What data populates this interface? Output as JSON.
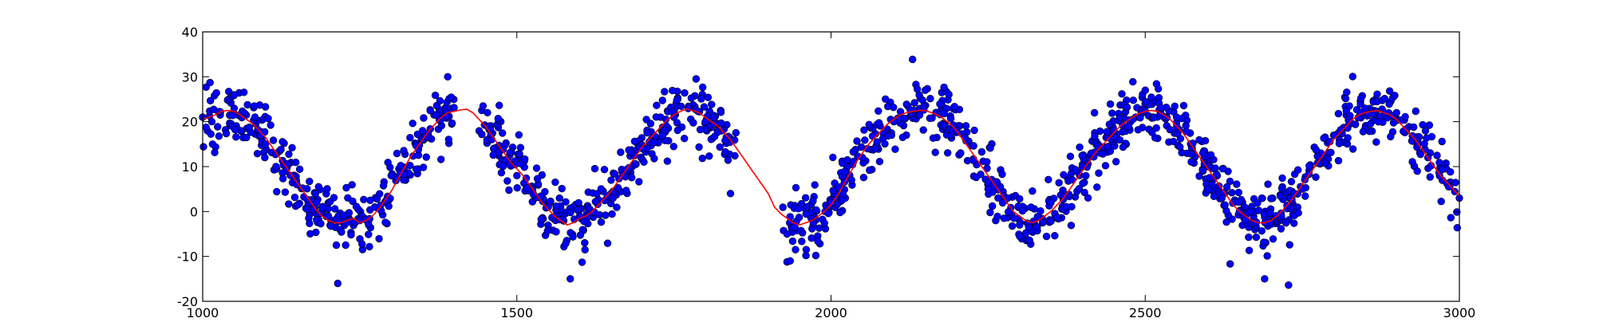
{
  "chart_data": {
    "type": "scatter",
    "title": "",
    "xlabel": "",
    "ylabel": "",
    "xlim": [
      1000,
      3000
    ],
    "ylim": [
      -20,
      40
    ],
    "x_ticks": [
      1000,
      1500,
      2000,
      2500,
      3000
    ],
    "y_ticks": [
      -20,
      -10,
      0,
      10,
      20,
      30,
      40
    ],
    "x_tick_labels": [
      "1000",
      "1500",
      "2000",
      "2500",
      "3000"
    ],
    "y_tick_labels": [
      "-20",
      "-10",
      "0",
      "10",
      "20",
      "30",
      "40"
    ],
    "grid": false,
    "legend": "none",
    "colors": {
      "points": "#0000ff",
      "point_edge": "#000000",
      "fit_line": "#ff0000",
      "axes": "#000000",
      "background": "#ffffff"
    },
    "gaps": [
      [
        1400,
        1440
      ],
      [
        1850,
        1920
      ]
    ],
    "series": [
      {
        "kind": "scatter",
        "point_count": 1600,
        "x_range": [
          1000,
          3000
        ],
        "pattern": "sinusoid, period ~370, amplitude ~12.5 around ~10, noise sd ~3",
        "samples": [
          {
            "x": 1000,
            "y": 21
          },
          {
            "x": 1050,
            "y": 23
          },
          {
            "x": 1100,
            "y": 15
          },
          {
            "x": 1150,
            "y": 6
          },
          {
            "x": 1200,
            "y": -1
          },
          {
            "x": 1215,
            "y": -16
          },
          {
            "x": 1250,
            "y": -2
          },
          {
            "x": 1300,
            "y": 8
          },
          {
            "x": 1350,
            "y": 18
          },
          {
            "x": 1390,
            "y": 30
          },
          {
            "x": 1460,
            "y": 16
          },
          {
            "x": 1500,
            "y": 8
          },
          {
            "x": 1550,
            "y": 1
          },
          {
            "x": 1585,
            "y": -15
          },
          {
            "x": 1600,
            "y": -1
          },
          {
            "x": 1650,
            "y": 7
          },
          {
            "x": 1700,
            "y": 14
          },
          {
            "x": 1750,
            "y": 21
          },
          {
            "x": 1800,
            "y": 20
          },
          {
            "x": 1840,
            "y": 4
          },
          {
            "x": 1930,
            "y": -5
          },
          {
            "x": 1935,
            "y": -11
          },
          {
            "x": 2000,
            "y": 2
          },
          {
            "x": 2050,
            "y": 12
          },
          {
            "x": 2100,
            "y": 20
          },
          {
            "x": 2150,
            "y": 27
          },
          {
            "x": 2200,
            "y": 18
          },
          {
            "x": 2250,
            "y": 5
          },
          {
            "x": 2300,
            "y": -3
          },
          {
            "x": 2350,
            "y": 2
          },
          {
            "x": 2400,
            "y": 10
          },
          {
            "x": 2450,
            "y": 18
          },
          {
            "x": 2500,
            "y": 27
          },
          {
            "x": 2550,
            "y": 21
          },
          {
            "x": 2600,
            "y": 10
          },
          {
            "x": 2650,
            "y": 0
          },
          {
            "x": 2690,
            "y": -15
          },
          {
            "x": 2750,
            "y": 5
          },
          {
            "x": 2800,
            "y": 17
          },
          {
            "x": 2850,
            "y": 23
          },
          {
            "x": 2900,
            "y": 22
          },
          {
            "x": 2950,
            "y": 12
          },
          {
            "x": 3000,
            "y": 3
          }
        ]
      },
      {
        "kind": "line",
        "points": [
          {
            "x": 1000,
            "y": 20.5
          },
          {
            "x": 1010,
            "y": 21
          },
          {
            "x": 1020,
            "y": 21.5
          },
          {
            "x": 1030,
            "y": 22.3
          },
          {
            "x": 1040,
            "y": 22.5
          },
          {
            "x": 1050,
            "y": 22.3
          },
          {
            "x": 1060,
            "y": 21.5
          },
          {
            "x": 1070,
            "y": 20.5
          },
          {
            "x": 1080,
            "y": 19.5
          },
          {
            "x": 1090,
            "y": 18
          },
          {
            "x": 1100,
            "y": 16.5
          },
          {
            "x": 1110,
            "y": 14.5
          },
          {
            "x": 1120,
            "y": 12.5
          },
          {
            "x": 1130,
            "y": 10.5
          },
          {
            "x": 1140,
            "y": 8.5
          },
          {
            "x": 1150,
            "y": 6.5
          },
          {
            "x": 1160,
            "y": 4.5
          },
          {
            "x": 1170,
            "y": 2.5
          },
          {
            "x": 1180,
            "y": 0.5
          },
          {
            "x": 1190,
            "y": -1
          },
          {
            "x": 1200,
            "y": -2
          },
          {
            "x": 1210,
            "y": -2.5
          },
          {
            "x": 1220,
            "y": -2.5
          },
          {
            "x": 1230,
            "y": -2
          },
          {
            "x": 1240,
            "y": -1.5
          },
          {
            "x": 1250,
            "y": -2.5
          },
          {
            "x": 1260,
            "y": -2
          },
          {
            "x": 1270,
            "y": -1
          },
          {
            "x": 1280,
            "y": 0.5
          },
          {
            "x": 1290,
            "y": 2.5
          },
          {
            "x": 1300,
            "y": 4.5
          },
          {
            "x": 1310,
            "y": 7
          },
          {
            "x": 1320,
            "y": 9.5
          },
          {
            "x": 1330,
            "y": 12
          },
          {
            "x": 1340,
            "y": 14
          },
          {
            "x": 1350,
            "y": 16
          },
          {
            "x": 1360,
            "y": 18
          },
          {
            "x": 1370,
            "y": 19.5
          },
          {
            "x": 1380,
            "y": 21
          },
          {
            "x": 1390,
            "y": 22
          },
          {
            "x": 1400,
            "y": 22.3
          },
          {
            "x": 1410,
            "y": 22.6
          },
          {
            "x": 1420,
            "y": 22.8
          },
          {
            "x": 1430,
            "y": 22
          },
          {
            "x": 1440,
            "y": 20.5
          },
          {
            "x": 1450,
            "y": 19
          },
          {
            "x": 1460,
            "y": 17
          },
          {
            "x": 1470,
            "y": 15
          },
          {
            "x": 1480,
            "y": 13
          },
          {
            "x": 1490,
            "y": 11
          },
          {
            "x": 1500,
            "y": 9.5
          },
          {
            "x": 1510,
            "y": 8
          },
          {
            "x": 1520,
            "y": 6
          },
          {
            "x": 1530,
            "y": 4
          },
          {
            "x": 1540,
            "y": 2
          },
          {
            "x": 1550,
            "y": 0.5
          },
          {
            "x": 1560,
            "y": -1
          },
          {
            "x": 1570,
            "y": -2
          },
          {
            "x": 1580,
            "y": -3
          },
          {
            "x": 1590,
            "y": -2.5
          },
          {
            "x": 1600,
            "y": -1.5
          },
          {
            "x": 1610,
            "y": -1
          },
          {
            "x": 1620,
            "y": 0
          },
          {
            "x": 1630,
            "y": 1.5
          },
          {
            "x": 1640,
            "y": 3
          },
          {
            "x": 1650,
            "y": 4.5
          },
          {
            "x": 1660,
            "y": 6.5
          },
          {
            "x": 1670,
            "y": 8.5
          },
          {
            "x": 1680,
            "y": 10.5
          },
          {
            "x": 1690,
            "y": 12.5
          },
          {
            "x": 1700,
            "y": 14.5
          },
          {
            "x": 1710,
            "y": 16
          },
          {
            "x": 1720,
            "y": 17.5
          },
          {
            "x": 1730,
            "y": 19
          },
          {
            "x": 1740,
            "y": 20.5
          },
          {
            "x": 1750,
            "y": 21.5
          },
          {
            "x": 1760,
            "y": 22.3
          },
          {
            "x": 1770,
            "y": 22.8
          },
          {
            "x": 1780,
            "y": 22.5
          },
          {
            "x": 1790,
            "y": 22
          },
          {
            "x": 1800,
            "y": 21
          },
          {
            "x": 1810,
            "y": 20
          },
          {
            "x": 1820,
            "y": 19
          },
          {
            "x": 1830,
            "y": 17.5
          },
          {
            "x": 1840,
            "y": 16
          },
          {
            "x": 1850,
            "y": 14
          },
          {
            "x": 1860,
            "y": 12
          },
          {
            "x": 1870,
            "y": 10
          },
          {
            "x": 1880,
            "y": 8
          },
          {
            "x": 1890,
            "y": 6
          },
          {
            "x": 1900,
            "y": 4
          },
          {
            "x": 1910,
            "y": 1
          },
          {
            "x": 1920,
            "y": -0.5
          },
          {
            "x": 1930,
            "y": -1.5
          },
          {
            "x": 1940,
            "y": -2.5
          },
          {
            "x": 1950,
            "y": -3
          },
          {
            "x": 1960,
            "y": -2.5
          },
          {
            "x": 1970,
            "y": -2
          },
          {
            "x": 1980,
            "y": -1
          },
          {
            "x": 1990,
            "y": 0
          },
          {
            "x": 2000,
            "y": 1.5
          },
          {
            "x": 2010,
            "y": 3.5
          },
          {
            "x": 2020,
            "y": 6
          },
          {
            "x": 2030,
            "y": 8.5
          },
          {
            "x": 2040,
            "y": 11
          },
          {
            "x": 2050,
            "y": 13
          },
          {
            "x": 2060,
            "y": 15
          },
          {
            "x": 2070,
            "y": 16.5
          },
          {
            "x": 2080,
            "y": 18
          },
          {
            "x": 2090,
            "y": 19.5
          },
          {
            "x": 2100,
            "y": 20.5
          },
          {
            "x": 2110,
            "y": 21.5
          },
          {
            "x": 2120,
            "y": 22
          },
          {
            "x": 2130,
            "y": 22.3
          },
          {
            "x": 2140,
            "y": 22.5
          },
          {
            "x": 2150,
            "y": 22.5
          },
          {
            "x": 2160,
            "y": 22
          },
          {
            "x": 2170,
            "y": 21.5
          },
          {
            "x": 2180,
            "y": 20.5
          },
          {
            "x": 2190,
            "y": 19.5
          },
          {
            "x": 2200,
            "y": 18
          },
          {
            "x": 2210,
            "y": 16
          },
          {
            "x": 2220,
            "y": 14
          },
          {
            "x": 2230,
            "y": 12
          },
          {
            "x": 2240,
            "y": 10
          },
          {
            "x": 2250,
            "y": 8
          },
          {
            "x": 2260,
            "y": 6
          },
          {
            "x": 2270,
            "y": 4
          },
          {
            "x": 2280,
            "y": 2
          },
          {
            "x": 2290,
            "y": 0
          },
          {
            "x": 2300,
            "y": -1
          },
          {
            "x": 2310,
            "y": -2
          },
          {
            "x": 2320,
            "y": -2.5
          },
          {
            "x": 2330,
            "y": -2
          },
          {
            "x": 2340,
            "y": -1
          },
          {
            "x": 2350,
            "y": 0
          },
          {
            "x": 2360,
            "y": 1.5
          },
          {
            "x": 2370,
            "y": 3
          },
          {
            "x": 2380,
            "y": 5
          },
          {
            "x": 2390,
            "y": 7
          },
          {
            "x": 2400,
            "y": 9
          },
          {
            "x": 2410,
            "y": 11
          },
          {
            "x": 2420,
            "y": 13
          },
          {
            "x": 2430,
            "y": 14.5
          },
          {
            "x": 2440,
            "y": 16
          },
          {
            "x": 2450,
            "y": 17.5
          },
          {
            "x": 2460,
            "y": 19
          },
          {
            "x": 2470,
            "y": 20
          },
          {
            "x": 2480,
            "y": 21
          },
          {
            "x": 2490,
            "y": 21.8
          },
          {
            "x": 2500,
            "y": 22.3
          },
          {
            "x": 2510,
            "y": 22.5
          },
          {
            "x": 2520,
            "y": 22.3
          },
          {
            "x": 2530,
            "y": 21.5
          },
          {
            "x": 2540,
            "y": 20.5
          },
          {
            "x": 2550,
            "y": 19
          },
          {
            "x": 2560,
            "y": 17.5
          },
          {
            "x": 2570,
            "y": 15.5
          },
          {
            "x": 2580,
            "y": 13.5
          },
          {
            "x": 2590,
            "y": 11.5
          },
          {
            "x": 2600,
            "y": 9.5
          },
          {
            "x": 2610,
            "y": 7.5
          },
          {
            "x": 2620,
            "y": 5.5
          },
          {
            "x": 2630,
            "y": 3.5
          },
          {
            "x": 2640,
            "y": 1.5
          },
          {
            "x": 2650,
            "y": 0
          },
          {
            "x": 2660,
            "y": -1
          },
          {
            "x": 2670,
            "y": -2
          },
          {
            "x": 2680,
            "y": -2.5
          },
          {
            "x": 2690,
            "y": -2.5
          },
          {
            "x": 2700,
            "y": -2
          },
          {
            "x": 2710,
            "y": -1
          },
          {
            "x": 2720,
            "y": 0.5
          },
          {
            "x": 2730,
            "y": 2
          },
          {
            "x": 2740,
            "y": 4
          },
          {
            "x": 2750,
            "y": 6
          },
          {
            "x": 2760,
            "y": 8
          },
          {
            "x": 2770,
            "y": 10
          },
          {
            "x": 2780,
            "y": 12
          },
          {
            "x": 2790,
            "y": 14
          },
          {
            "x": 2800,
            "y": 16
          },
          {
            "x": 2810,
            "y": 17.5
          },
          {
            "x": 2820,
            "y": 19
          },
          {
            "x": 2830,
            "y": 20.5
          },
          {
            "x": 2840,
            "y": 21.5
          },
          {
            "x": 2850,
            "y": 22
          },
          {
            "x": 2860,
            "y": 22.3
          },
          {
            "x": 2870,
            "y": 22.5
          },
          {
            "x": 2880,
            "y": 22
          },
          {
            "x": 2890,
            "y": 21.5
          },
          {
            "x": 2900,
            "y": 20.5
          },
          {
            "x": 2910,
            "y": 19
          },
          {
            "x": 2920,
            "y": 17.5
          },
          {
            "x": 2930,
            "y": 16
          },
          {
            "x": 2940,
            "y": 14
          },
          {
            "x": 2950,
            "y": 12
          },
          {
            "x": 2960,
            "y": 10
          },
          {
            "x": 2970,
            "y": 8
          },
          {
            "x": 2980,
            "y": 6.5
          },
          {
            "x": 2990,
            "y": 5
          },
          {
            "x": 3000,
            "y": 3.5
          }
        ]
      }
    ]
  }
}
